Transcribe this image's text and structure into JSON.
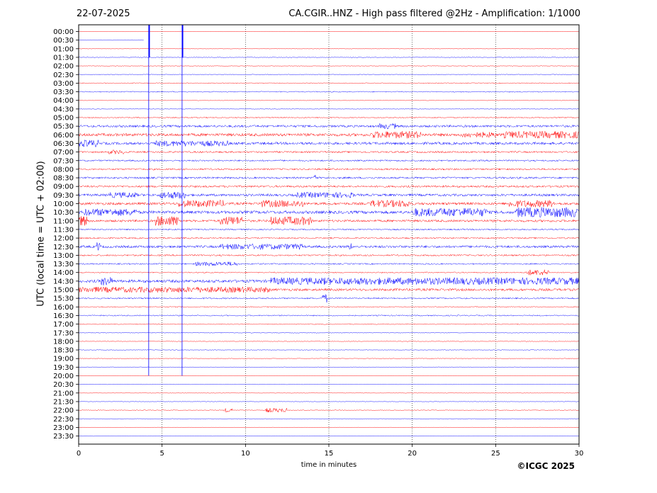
{
  "header": {
    "date": "22-07-2025",
    "title": "CA.CGIR..HNZ - High pass filtered @2Hz - Amplification: 1/1000"
  },
  "footer": {
    "copyright": "©ICGC 2025"
  },
  "chart_data": {
    "type": "line",
    "title": "CA.CGIR..HNZ - High pass filtered @2Hz - Amplification: 1/1000",
    "xlabel": "time in minutes",
    "ylabel": "UTC (local time = UTC + 02:00)",
    "xlim": [
      0,
      30
    ],
    "xticks": [
      0,
      5,
      10,
      15,
      20,
      25,
      30
    ],
    "grid": "vertical dotted lines every 5 minutes",
    "colors": {
      "odd_row": "#ff0000",
      "even_row": "#0000ff"
    },
    "rows": [
      "00:00",
      "00:30",
      "01:00",
      "01:30",
      "02:00",
      "02:30",
      "03:00",
      "03:30",
      "04:00",
      "04:30",
      "05:00",
      "05:30",
      "06:00",
      "06:30",
      "07:00",
      "07:30",
      "08:00",
      "08:30",
      "09:00",
      "09:30",
      "10:00",
      "10:30",
      "11:00",
      "11:30",
      "12:00",
      "12:30",
      "13:00",
      "13:30",
      "14:00",
      "14:30",
      "15:00",
      "15:30",
      "16:00",
      "16:30",
      "17:00",
      "17:30",
      "18:00",
      "18:30",
      "19:00",
      "19:30",
      "20:00",
      "20:30",
      "21:00",
      "21:30",
      "22:00",
      "22:30",
      "23:00",
      "23:30"
    ],
    "trace_end": {
      "row": "00:30",
      "minute": 3.9
    },
    "noise_level": [
      0.3,
      0.3,
      0.3,
      0.5,
      0.4,
      0.5,
      0.6,
      0.7,
      0.4,
      0.4,
      0.8,
      1.6,
      2.0,
      1.8,
      1.2,
      1.1,
      1.2,
      1.3,
      1.4,
      1.7,
      1.8,
      2.1,
      1.6,
      1.0,
      1.0,
      1.7,
      1.1,
      0.9,
      0.8,
      2.0,
      1.7,
      1.0,
      0.7,
      0.8,
      0.6,
      0.5,
      0.5,
      0.4,
      0.5,
      0.4,
      0.3,
      0.3,
      0.3,
      0.3,
      0.5,
      0.3,
      0.3,
      0.3
    ],
    "bursts": [
      {
        "row": "05:30",
        "start": 18.0,
        "end": 19.0,
        "amp": 4
      },
      {
        "row": "06:00",
        "start": 17.5,
        "end": 20.5,
        "amp": 5
      },
      {
        "row": "06:00",
        "start": 23.0,
        "end": 25.0,
        "amp": 4
      },
      {
        "row": "06:00",
        "start": 25.5,
        "end": 30.0,
        "amp": 5
      },
      {
        "row": "06:30",
        "start": 0.0,
        "end": 1.2,
        "amp": 5
      },
      {
        "row": "06:30",
        "start": 4.5,
        "end": 9.0,
        "amp": 4
      },
      {
        "row": "07:00",
        "start": 1.8,
        "end": 2.8,
        "amp": 3
      },
      {
        "row": "08:30",
        "start": 14.1,
        "end": 14.2,
        "amp": 8
      },
      {
        "row": "09:30",
        "start": 1.8,
        "end": 3.5,
        "amp": 4
      },
      {
        "row": "09:30",
        "start": 4.8,
        "end": 6.5,
        "amp": 5
      },
      {
        "row": "09:30",
        "start": 13.0,
        "end": 16.5,
        "amp": 4
      },
      {
        "row": "10:00",
        "start": 6.0,
        "end": 8.8,
        "amp": 5
      },
      {
        "row": "10:00",
        "start": 10.8,
        "end": 13.5,
        "amp": 5
      },
      {
        "row": "10:00",
        "start": 17.5,
        "end": 20.0,
        "amp": 5
      },
      {
        "row": "10:00",
        "start": 25.8,
        "end": 28.5,
        "amp": 5
      },
      {
        "row": "10:30",
        "start": 0.3,
        "end": 3.5,
        "amp": 5
      },
      {
        "row": "10:30",
        "start": 20.0,
        "end": 24.5,
        "amp": 6
      },
      {
        "row": "10:30",
        "start": 26.2,
        "end": 30.0,
        "amp": 7
      },
      {
        "row": "11:00",
        "start": 0.0,
        "end": 0.5,
        "amp": 7
      },
      {
        "row": "11:00",
        "start": 4.6,
        "end": 6.0,
        "amp": 7
      },
      {
        "row": "11:00",
        "start": 8.5,
        "end": 9.8,
        "amp": 6
      },
      {
        "row": "11:00",
        "start": 11.5,
        "end": 14.0,
        "amp": 6
      },
      {
        "row": "12:30",
        "start": 1.1,
        "end": 1.3,
        "amp": 7
      },
      {
        "row": "12:30",
        "start": 8.5,
        "end": 13.5,
        "amp": 4
      },
      {
        "row": "12:30",
        "start": 16.2,
        "end": 16.4,
        "amp": 5
      },
      {
        "row": "13:30",
        "start": 7.0,
        "end": 9.5,
        "amp": 3
      },
      {
        "row": "14:00",
        "start": 26.8,
        "end": 28.2,
        "amp": 4
      },
      {
        "row": "14:30",
        "start": 1.3,
        "end": 2.0,
        "amp": 6
      },
      {
        "row": "14:30",
        "start": 11.5,
        "end": 30.0,
        "amp": 5
      },
      {
        "row": "15:00",
        "start": 0.0,
        "end": 11.5,
        "amp": 4
      },
      {
        "row": "15:30",
        "start": 14.6,
        "end": 14.9,
        "amp": 6
      },
      {
        "row": "22:00",
        "start": 8.7,
        "end": 9.2,
        "amp": 3
      },
      {
        "row": "22:00",
        "start": 11.2,
        "end": 12.5,
        "amp": 3
      }
    ],
    "spikes": [
      {
        "row": "00:00",
        "minute": 4.2,
        "color": "#0000ff",
        "to_row": "20:00"
      },
      {
        "row": "00:00",
        "minute": 6.2,
        "color": "#0000ff",
        "to_row": "20:00"
      }
    ]
  }
}
